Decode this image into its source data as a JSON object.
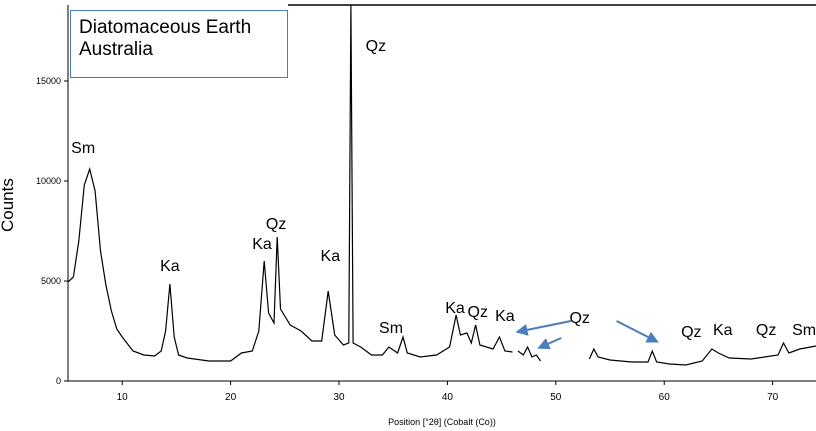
{
  "textbox": {
    "line1": "Diatomaceous Earth",
    "line2": "Australia"
  },
  "chart_data": {
    "type": "line",
    "title": "",
    "xlabel": "Position [°2θ] (Cobalt (Co))",
    "ylabel": "Counts",
    "xlim": [
      5,
      74
    ],
    "ylim": [
      0,
      18800
    ],
    "xticks": [
      10,
      20,
      30,
      40,
      50,
      60,
      70
    ],
    "yticks": [
      0,
      5000,
      10000,
      15000
    ],
    "series": [
      {
        "points": [
          [
            5,
            4950
          ],
          [
            5.5,
            5200
          ],
          [
            6,
            7000
          ],
          [
            6.5,
            9800
          ],
          [
            7,
            10600
          ],
          [
            7.5,
            9500
          ],
          [
            8,
            6500
          ],
          [
            8.5,
            4800
          ],
          [
            9,
            3500
          ],
          [
            9.5,
            2600
          ],
          [
            10,
            2200
          ],
          [
            11,
            1500
          ],
          [
            12,
            1300
          ],
          [
            13,
            1250
          ],
          [
            13.6,
            1500
          ],
          [
            14,
            2500
          ],
          [
            14.4,
            4850
          ],
          [
            14.8,
            2200
          ],
          [
            15.2,
            1300
          ],
          [
            16,
            1150
          ],
          [
            18,
            1000
          ],
          [
            19,
            1000
          ],
          [
            20,
            1000
          ],
          [
            21,
            1400
          ],
          [
            22,
            1500
          ],
          [
            22.6,
            2500
          ],
          [
            23.1,
            6000
          ],
          [
            23.5,
            3400
          ],
          [
            24,
            2900
          ],
          [
            24.3,
            7200
          ],
          [
            24.6,
            3600
          ],
          [
            25.5,
            2800
          ],
          [
            26.5,
            2500
          ],
          [
            27.5,
            2000
          ],
          [
            28.4,
            2000
          ],
          [
            29,
            4500
          ],
          [
            29.6,
            2300
          ],
          [
            30.4,
            1800
          ],
          [
            30.9,
            1900
          ],
          [
            31.1,
            18800
          ],
          [
            31.3,
            1900
          ],
          [
            32,
            1700
          ],
          [
            33,
            1300
          ],
          [
            34,
            1300
          ],
          [
            34.6,
            1700
          ],
          [
            35.4,
            1400
          ],
          [
            35.9,
            2200
          ],
          [
            36.3,
            1400
          ],
          [
            37.5,
            1200
          ],
          [
            39,
            1300
          ],
          [
            40.2,
            1700
          ],
          [
            40.8,
            3300
          ],
          [
            41.2,
            2300
          ],
          [
            41.8,
            2400
          ],
          [
            42.2,
            1900
          ],
          [
            42.6,
            2800
          ],
          [
            43.0,
            1800
          ],
          [
            44.2,
            1600
          ],
          [
            44.8,
            2200
          ],
          [
            45.3,
            1500
          ],
          [
            46,
            1450
          ]
        ]
      },
      {
        "points": [
          [
            46.5,
            1500
          ],
          [
            47,
            1300
          ],
          [
            47.4,
            1700
          ],
          [
            47.8,
            1200
          ],
          [
            48.2,
            1300
          ],
          [
            48.6,
            1000
          ]
        ]
      },
      {
        "points": [
          [
            53.1,
            1100
          ],
          [
            53.5,
            1600
          ],
          [
            53.9,
            1200
          ],
          [
            55,
            1050
          ],
          [
            57,
            950
          ],
          [
            58.5,
            950
          ],
          [
            58.9,
            1500
          ],
          [
            59.3,
            950
          ],
          [
            60.5,
            850
          ],
          [
            62,
            800
          ],
          [
            63.5,
            1000
          ],
          [
            64.4,
            1600
          ],
          [
            65,
            1400
          ],
          [
            66,
            1150
          ],
          [
            68,
            1100
          ],
          [
            70.5,
            1300
          ],
          [
            71,
            1900
          ],
          [
            71.5,
            1400
          ],
          [
            72.5,
            1600
          ],
          [
            73.5,
            1700
          ],
          [
            74,
            1750
          ]
        ]
      }
    ],
    "annotations": [
      {
        "text": "Sm",
        "x": 6.4,
        "y": 11400
      },
      {
        "text": "Ka",
        "x": 14.4,
        "y": 5500
      },
      {
        "text": "Ka",
        "x": 22.9,
        "y": 6600
      },
      {
        "text": "Qz",
        "x": 24.2,
        "y": 7600
      },
      {
        "text": "Ka",
        "x": 29.2,
        "y": 6000
      },
      {
        "text": "Qz",
        "x": 33.4,
        "y": 16500
      },
      {
        "text": "Sm",
        "x": 34.8,
        "y": 2400
      },
      {
        "text": "Ka",
        "x": 40.7,
        "y": 3400
      },
      {
        "text": "Qz",
        "x": 42.8,
        "y": 3200
      },
      {
        "text": "Ka",
        "x": 45.3,
        "y": 3000
      },
      {
        "text": "Qz",
        "x": 52.2,
        "y": 2900
      },
      {
        "text": "Qz",
        "x": 62.5,
        "y": 2200
      },
      {
        "text": "Ka",
        "x": 65.4,
        "y": 2300
      },
      {
        "text": "Qz",
        "x": 69.4,
        "y": 2300
      },
      {
        "text": "Sm",
        "x": 72.9,
        "y": 2300
      }
    ],
    "arrows": [
      {
        "from": [
          51.4,
          3000
        ],
        "to": [
          46.4,
          2450
        ]
      },
      {
        "from": [
          50.5,
          2150
        ],
        "to": [
          48.4,
          1650
        ]
      },
      {
        "from": [
          55.6,
          3000
        ],
        "to": [
          59.4,
          1950
        ]
      }
    ],
    "grid": false,
    "legend": "none"
  }
}
